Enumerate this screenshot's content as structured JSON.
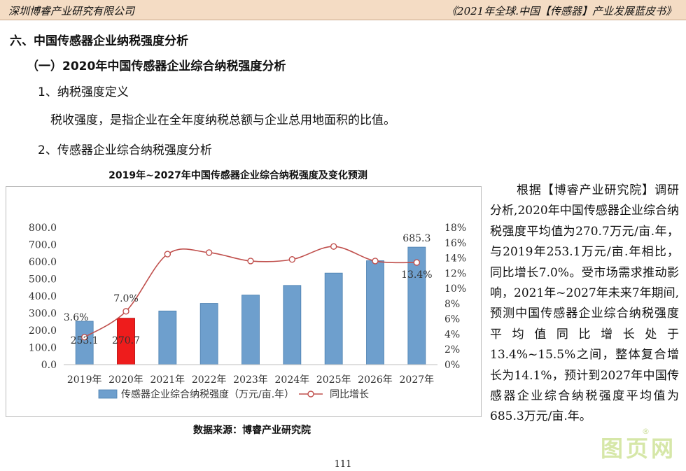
{
  "header": {
    "left": "深圳博睿产业研究有限公司",
    "right": "《2021年全球.中国【传感器】产业发展蓝皮书》"
  },
  "section": {
    "h1": "六、中国传感器企业纳税强度分析",
    "h2": "（一）2020年中国传感器企业综合纳税强度分析",
    "h3": "1、纳税强度定义",
    "definition": "税收强度，是指企业在全年度纳税总额与企业总用地面积的比值。",
    "h4": "2、传感器企业综合纳税强度分析"
  },
  "chart_data": {
    "type": "bar",
    "title": "2019年~2027年中国传感器企业综合纳税强度及变化预测",
    "categories": [
      "2019年",
      "2020年",
      "2021年",
      "2022年",
      "2023年",
      "2024年",
      "2025年",
      "2026年",
      "2027年"
    ],
    "series": [
      {
        "name": "传感器企业综合纳税强度（万元/亩.年）",
        "type": "bar",
        "axis": "left",
        "values": [
          253.1,
          270.7,
          313,
          357,
          406,
          462,
          534,
          606,
          685.3
        ],
        "data_labels": [
          "253.1",
          "270.7",
          "",
          "",
          "",
          "",
          "",
          "",
          "685.3"
        ]
      },
      {
        "name": "同比增长",
        "type": "line",
        "axis": "right",
        "values": [
          3.6,
          7.0,
          14.5,
          14.7,
          13.6,
          13.8,
          15.5,
          13.6,
          13.4
        ],
        "data_labels": [
          "3.6%",
          "7.0%",
          "",
          "",
          "",
          "",
          "",
          "",
          "13.4%"
        ]
      }
    ],
    "y_left": {
      "ylim": [
        0,
        800
      ],
      "ticks": [
        "0.0",
        "100.0",
        "200.0",
        "300.0",
        "400.0",
        "500.0",
        "600.0",
        "700.0",
        "800.0"
      ]
    },
    "y_right": {
      "ylim": [
        0,
        18
      ],
      "ticks": [
        "0%",
        "2%",
        "4%",
        "6%",
        "8%",
        "10%",
        "12%",
        "14%",
        "16%",
        "18%"
      ]
    },
    "highlight_index": 1,
    "colors": {
      "bar": "#6e9fcd",
      "bar_highlight": "#ee1c1c",
      "line": "#c0504d"
    },
    "grid": false,
    "legend": "bottom"
  },
  "source": "数据来源：博睿产业研究院",
  "analysis": "根据【博睿产业研究院】调研分析,2020年中国传感器企业综合纳税强度平均值为270.7万元/亩.年，与2019年253.1万元/亩.年相比，同比增长7.0%。受市场需求推动影响，2021年~2027年未来7年期间,预测中国传感器企业综合纳税强度平均值同比增长处于13.4%~15.5%之间，整体复合增长为14.1%，预计到2027年中国传感器企业综合纳税强度平均值为685.3万元/亩.年。",
  "page_number": "111",
  "watermark": {
    "text": "图页网",
    "mark": "®"
  }
}
